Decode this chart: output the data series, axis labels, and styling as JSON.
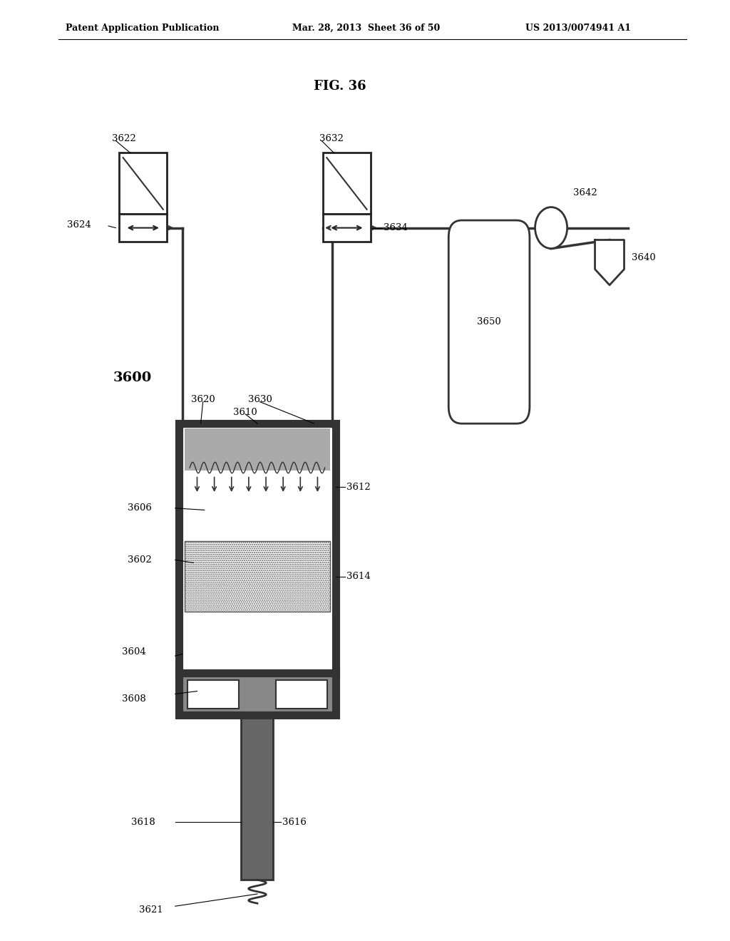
{
  "title_header_left": "Patent Application Publication",
  "title_header_mid": "Mar. 28, 2013  Sheet 36 of 50",
  "title_header_right": "US 2013/0074941 A1",
  "fig_label": "FIG. 36",
  "system_label": "3600",
  "bg_color": "#ffffff",
  "dark_color": "#333333",
  "mid_color": "#888888",
  "light_gray": "#cccccc",
  "fs_label": 9.5,
  "fs_header": 9,
  "fs_fig": 13,
  "fs_system": 14
}
